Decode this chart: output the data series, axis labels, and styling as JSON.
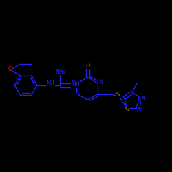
{
  "bg_color": "#000000",
  "bond_color": "#2222ff",
  "atom_colors": {
    "N": "#2222ff",
    "O": "#ff2200",
    "S": "#ccaa00",
    "C": "#2222ff"
  },
  "figsize": [
    2.5,
    2.5
  ],
  "dpi": 100,
  "lw": 1.0,
  "fs": 5.8,
  "xlim": [
    -0.05,
    1.05
  ],
  "ylim": [
    0.25,
    0.85
  ]
}
